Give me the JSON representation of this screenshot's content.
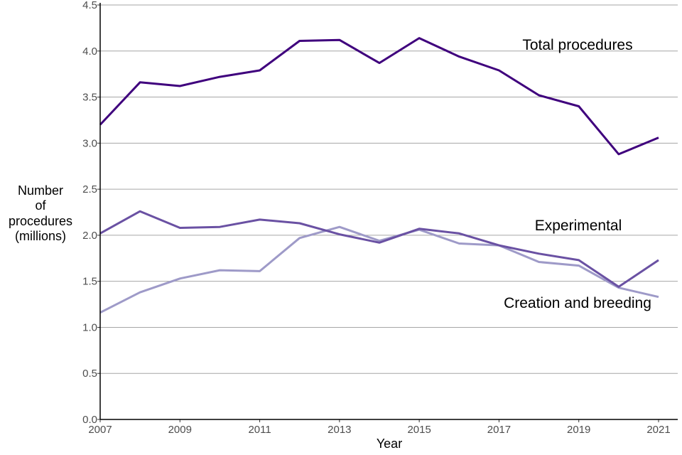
{
  "chart_data": {
    "type": "line",
    "title": "",
    "xlabel": "Year",
    "ylabel": [
      "Number",
      "of",
      "procedures",
      "(millions)"
    ],
    "x": [
      2007,
      2008,
      2009,
      2010,
      2011,
      2012,
      2013,
      2014,
      2015,
      2016,
      2017,
      2018,
      2019,
      2020,
      2021
    ],
    "xlim": [
      2007,
      2021.5
    ],
    "ylim": [
      0,
      4.5
    ],
    "x_ticks": [
      "2007",
      "2009",
      "2011",
      "2013",
      "2015",
      "2017",
      "2019",
      "2021"
    ],
    "y_ticks": [
      "0.0",
      "0.5",
      "1.0",
      "1.5",
      "2.0",
      "2.5",
      "3.0",
      "3.5",
      "4.0",
      "4.5"
    ],
    "grid": "horizontal",
    "legend": "direct labels",
    "series": [
      {
        "name": "Total procedures",
        "color": "#3f007d",
        "values": [
          3.2,
          3.66,
          3.62,
          3.72,
          3.79,
          4.11,
          4.12,
          3.87,
          4.14,
          3.94,
          3.79,
          3.52,
          3.4,
          2.88,
          3.06
        ]
      },
      {
        "name": "Experimental",
        "color": "#6a51a3",
        "values": [
          2.02,
          2.26,
          2.08,
          2.09,
          2.17,
          2.13,
          2.01,
          1.92,
          2.07,
          2.02,
          1.89,
          1.8,
          1.73,
          1.44,
          1.73
        ]
      },
      {
        "name": "Creation and breeding",
        "color": "#9e9ac8",
        "values": [
          1.16,
          1.38,
          1.53,
          1.62,
          1.61,
          1.97,
          2.09,
          1.94,
          2.06,
          1.91,
          1.89,
          1.71,
          1.67,
          1.43,
          1.33
        ]
      }
    ]
  }
}
